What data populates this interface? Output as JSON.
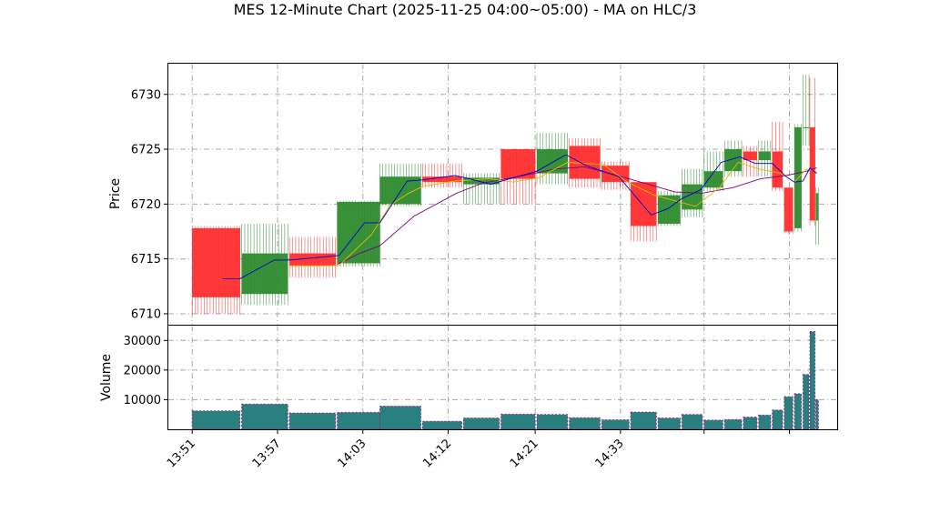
{
  "chart_data": {
    "type": "ohlc-candlestick-with-volume",
    "title": "MES 12-Minute Chart (2025-11-25 04:00~05:00) - MA on HLC/3",
    "price_panel": {
      "ylabel": "Price",
      "ylim": [
        6709,
        6732.8
      ],
      "yticks": [
        6710,
        6715,
        6720,
        6725,
        6730
      ]
    },
    "volume_panel": {
      "ylabel": "Volume",
      "ylim": [
        0,
        35000
      ],
      "yticks": [
        10000,
        20000,
        30000
      ]
    },
    "x_tick_labels": [
      "13:51",
      "13:57",
      "14:03",
      "14:12",
      "14:21",
      "14:33"
    ],
    "grid": true,
    "colors": {
      "up": "#2e8b2e",
      "down": "#ff2e2e",
      "ma_fast": "#0000cc",
      "ma_mid": "#e6b800",
      "ma_slow": "#800080",
      "volume_bar": "#2a7f7f",
      "volume_edge": "#8a2b8a"
    },
    "candles": [
      {
        "t": 0.0,
        "w": 2.8,
        "o": 6717.8,
        "h": 6718.0,
        "l": 6710.0,
        "c": 6711.5,
        "v": 6200
      },
      {
        "t": 2.9,
        "w": 2.7,
        "o": 6711.8,
        "h": 6718.2,
        "l": 6710.8,
        "c": 6715.5,
        "v": 8500
      },
      {
        "t": 5.7,
        "w": 2.7,
        "o": 6715.5,
        "h": 6717.0,
        "l": 6713.3,
        "c": 6714.4,
        "v": 5500
      },
      {
        "t": 8.5,
        "w": 2.5,
        "o": 6714.6,
        "h": 6720.3,
        "l": 6714.3,
        "c": 6720.2,
        "v": 5700
      },
      {
        "t": 11.0,
        "w": 2.4,
        "o": 6720.0,
        "h": 6723.7,
        "l": 6719.8,
        "c": 6722.5,
        "v": 7800
      },
      {
        "t": 13.5,
        "w": 2.3,
        "o": 6722.5,
        "h": 6723.7,
        "l": 6721.5,
        "c": 6722.0,
        "v": 2700
      },
      {
        "t": 15.9,
        "w": 2.1,
        "o": 6721.8,
        "h": 6722.8,
        "l": 6720.0,
        "c": 6722.4,
        "v": 3800
      },
      {
        "t": 18.1,
        "w": 2.0,
        "o": 6725.0,
        "h": 6725.0,
        "l": 6720.0,
        "c": 6722.3,
        "v": 5100
      },
      {
        "t": 20.2,
        "w": 1.8,
        "o": 6722.8,
        "h": 6726.5,
        "l": 6721.8,
        "c": 6725.0,
        "v": 5000
      },
      {
        "t": 22.1,
        "w": 1.8,
        "o": 6725.3,
        "h": 6726.0,
        "l": 6721.5,
        "c": 6722.3,
        "v": 3900
      },
      {
        "t": 24.0,
        "w": 1.6,
        "o": 6723.5,
        "h": 6723.9,
        "l": 6721.3,
        "c": 6722.0,
        "v": 3200
      },
      {
        "t": 25.7,
        "w": 1.5,
        "o": 6722.0,
        "h": 6722.0,
        "l": 6716.6,
        "c": 6718.0,
        "v": 5800
      },
      {
        "t": 27.3,
        "w": 1.3,
        "o": 6718.2,
        "h": 6721.2,
        "l": 6718.0,
        "c": 6720.8,
        "v": 3800
      },
      {
        "t": 28.7,
        "w": 1.2,
        "o": 6719.5,
        "h": 6723.2,
        "l": 6718.8,
        "c": 6721.8,
        "v": 5000
      },
      {
        "t": 30.0,
        "w": 1.1,
        "o": 6721.5,
        "h": 6724.8,
        "l": 6721.2,
        "c": 6723.0,
        "v": 3100
      },
      {
        "t": 31.2,
        "w": 1.0,
        "o": 6723.0,
        "h": 6725.8,
        "l": 6722.5,
        "c": 6725.0,
        "v": 3300
      },
      {
        "t": 32.3,
        "w": 0.8,
        "o": 6724.8,
        "h": 6725.3,
        "l": 6722.5,
        "c": 6724.0,
        "v": 4100
      },
      {
        "t": 33.2,
        "w": 0.7,
        "o": 6724.0,
        "h": 6725.8,
        "l": 6722.5,
        "c": 6724.8,
        "v": 4800
      },
      {
        "t": 34.0,
        "w": 0.6,
        "o": 6724.8,
        "h": 6727.5,
        "l": 6721.2,
        "c": 6721.5,
        "v": 6500
      },
      {
        "t": 34.7,
        "w": 0.5,
        "o": 6721.5,
        "h": 6721.5,
        "l": 6717.3,
        "c": 6717.5,
        "v": 11000
      },
      {
        "t": 35.3,
        "w": 0.4,
        "o": 6717.8,
        "h": 6727.3,
        "l": 6717.5,
        "c": 6727.0,
        "v": 12000
      },
      {
        "t": 35.8,
        "w": 0.35,
        "o": 6727.0,
        "h": 6731.8,
        "l": 6725.3,
        "c": 6727.0,
        "v": 18500
      },
      {
        "t": 36.2,
        "w": 0.3,
        "o": 6727.0,
        "h": 6731.5,
        "l": 6718.0,
        "c": 6718.5,
        "v": 33000
      },
      {
        "t": 36.55,
        "w": 0.15,
        "o": 6718.5,
        "h": 6721.5,
        "l": 6716.3,
        "c": 6721.0,
        "v": 10000
      }
    ],
    "ma_fast": [
      [
        1.8,
        6713.2
      ],
      [
        2.8,
        6713.2
      ],
      [
        4.8,
        6714.9
      ],
      [
        5.7,
        6714.9
      ],
      [
        8.6,
        6715.3
      ],
      [
        10.1,
        6718.3
      ],
      [
        11.0,
        6718.3
      ],
      [
        12.6,
        6722.1
      ],
      [
        13.5,
        6722.2
      ],
      [
        15.4,
        6722.6
      ],
      [
        16.0,
        6722.4
      ],
      [
        17.5,
        6721.8
      ],
      [
        18.6,
        6722.3
      ],
      [
        20.2,
        6723.0
      ],
      [
        21.9,
        6724.5
      ],
      [
        23.1,
        6723.5
      ],
      [
        25.0,
        6722.5
      ],
      [
        26.9,
        6719.0
      ],
      [
        27.9,
        6719.6
      ],
      [
        28.7,
        6720.5
      ],
      [
        29.8,
        6721.3
      ],
      [
        31.0,
        6723.8
      ],
      [
        32.1,
        6724.3
      ],
      [
        33.0,
        6723.7
      ],
      [
        34.0,
        6723.7
      ],
      [
        34.8,
        6722.5
      ],
      [
        35.3,
        6722.0
      ],
      [
        35.8,
        6722.1
      ],
      [
        36.2,
        6723.3
      ],
      [
        36.6,
        6722.8
      ]
    ],
    "ma_mid": [
      [
        5.7,
        6714.3
      ],
      [
        8.6,
        6714.4
      ],
      [
        10.5,
        6717.2
      ],
      [
        11.6,
        6719.9
      ],
      [
        12.7,
        6721.0
      ],
      [
        13.5,
        6721.6
      ],
      [
        15.4,
        6722.1
      ],
      [
        17.4,
        6722.3
      ],
      [
        18.8,
        6722.0
      ],
      [
        20.3,
        6722.4
      ],
      [
        22.0,
        6723.8
      ],
      [
        24.1,
        6723.6
      ],
      [
        25.5,
        6722.0
      ],
      [
        27.1,
        6720.8
      ],
      [
        29.5,
        6719.8
      ],
      [
        30.9,
        6721.5
      ],
      [
        32.0,
        6723.8
      ],
      [
        33.2,
        6723.2
      ],
      [
        34.5,
        6722.8
      ],
      [
        35.3,
        6722.0
      ],
      [
        36.0,
        6723.2
      ],
      [
        36.6,
        6723.0
      ]
    ],
    "ma_slow": [
      [
        8.5,
        6714.5
      ],
      [
        9.8,
        6715.5
      ],
      [
        11.0,
        6716.2
      ],
      [
        13.0,
        6718.9
      ],
      [
        15.5,
        6721.0
      ],
      [
        17.0,
        6721.9
      ],
      [
        19.1,
        6722.5
      ],
      [
        21.3,
        6723.2
      ],
      [
        23.0,
        6723.4
      ],
      [
        25.6,
        6722.3
      ],
      [
        28.3,
        6721.1
      ],
      [
        29.9,
        6721.0
      ],
      [
        31.7,
        6721.5
      ],
      [
        33.3,
        6722.3
      ],
      [
        34.8,
        6722.6
      ],
      [
        36.0,
        6723.0
      ],
      [
        36.6,
        6723.3
      ]
    ]
  }
}
